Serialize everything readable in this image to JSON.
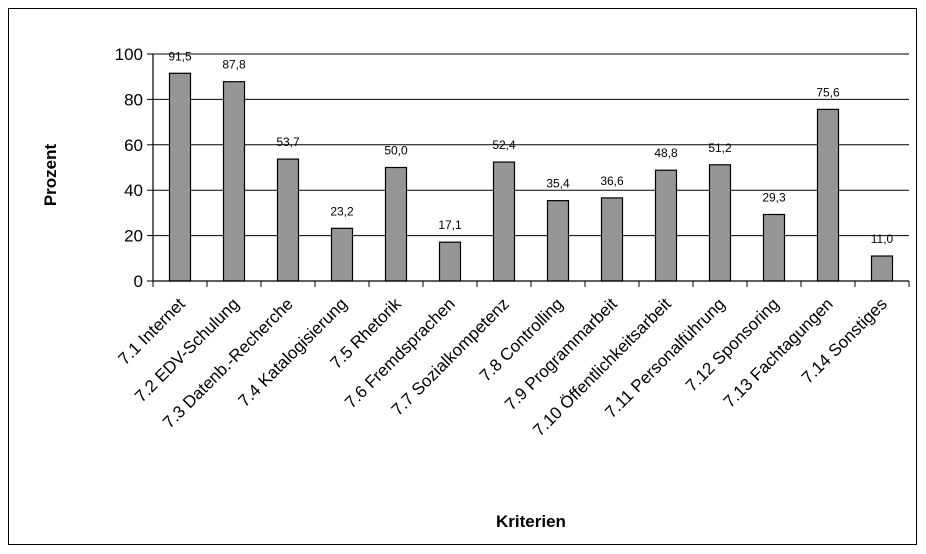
{
  "chart_data": {
    "type": "bar",
    "title": "",
    "xlabel": "Kriterien",
    "ylabel": "Prozent",
    "ylim": [
      0,
      100
    ],
    "yticks": [
      0,
      20,
      40,
      60,
      80,
      100
    ],
    "grid": true,
    "legend": "none",
    "categories": [
      "7.1 Internet",
      "7.2 EDV-Schulung",
      "7.3 Datenb.-Recherche",
      "7.4 Katalogisierung",
      "7.5 Rhetorik",
      "7.6 Fremdsprachen",
      "7.7 Sozialkompetenz",
      "7.8 Controlling",
      "7.9 Programmarbeit",
      "7.10 Öffentlichkeitsarbeit",
      "7.11 Personalführung",
      "7.12 Sponsoring",
      "7.13 Fachtagungen",
      "7.14 Sonstiges"
    ],
    "values": [
      91.5,
      87.8,
      53.7,
      23.2,
      50.0,
      17.1,
      52.4,
      35.4,
      36.6,
      48.8,
      51.2,
      29.3,
      75.6,
      11.0
    ],
    "data_labels": [
      "91,5",
      "87,8",
      "53,7",
      "23,2",
      "50,0",
      "17,1",
      "52,4",
      "35,4",
      "36,6",
      "48,8",
      "51,2",
      "29,3",
      "75,6",
      "11,0"
    ],
    "colors": {
      "bar_fill": "#969696",
      "bar_stroke": "#000000",
      "grid": "#000000",
      "background": "#ffffff"
    }
  }
}
